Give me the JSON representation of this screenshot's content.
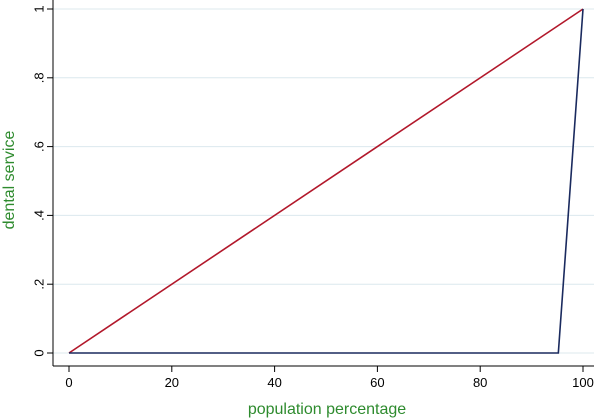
{
  "chart_data": {
    "type": "line",
    "title": "",
    "xlabel": "population percentage",
    "ylabel": "dental service",
    "xlim": [
      0,
      100
    ],
    "ylim": [
      0,
      1
    ],
    "x_ticks": [
      0,
      20,
      40,
      60,
      80,
      100
    ],
    "x_tick_labels": [
      "0",
      "20",
      "40",
      "60",
      "80",
      "100"
    ],
    "y_ticks": [
      0,
      0.2,
      0.4,
      0.6,
      0.8,
      1
    ],
    "y_tick_labels": [
      "0",
      ".2",
      ".4",
      ".6",
      ".8",
      "1"
    ],
    "grid": "horizontal",
    "legend": "none",
    "series": [
      {
        "x": [
          0,
          100
        ],
        "y": [
          0,
          1
        ],
        "color": "#b2182b"
      },
      {
        "x": [
          0,
          95.2,
          100
        ],
        "y": [
          0,
          0,
          1
        ],
        "color": "#1a2a5e"
      }
    ]
  },
  "colors": {
    "axis_title": "#2e8b2e",
    "grid": "#dce8ee",
    "axis": "#000000"
  }
}
